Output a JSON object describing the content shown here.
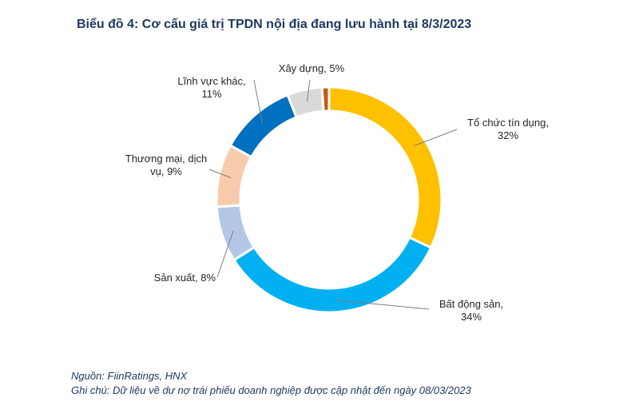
{
  "chart_data": {
    "type": "pie",
    "donut": true,
    "title": "Biểu đồ 4: Cơ cấu giá trị TPDN nội địa đang lưu hành tại 8/3/2023",
    "categories": [
      "Tổ chức tín dụng",
      "Bất động sản",
      "Sản xuất",
      "Thương mại, dịch vụ",
      "Lĩnh vực khác",
      "Xây dựng"
    ],
    "values": [
      32,
      34,
      8,
      9,
      11,
      5
    ],
    "extra_slice_value": 1,
    "colors": [
      "#ffc000",
      "#00b0f0",
      "#b4c7e7",
      "#f8cbad",
      "#0070c0",
      "#d9d9d9",
      "#c55a11"
    ],
    "labels": [
      {
        "lines": [
          "Tổ chức tín dụng,",
          "32%"
        ]
      },
      {
        "lines": [
          "Bất động sản,",
          "34%"
        ]
      },
      {
        "lines": [
          "Sản xuất, 8%"
        ]
      },
      {
        "lines": [
          "Thương mại, dịch",
          "vụ, 9%"
        ]
      },
      {
        "lines": [
          "Lĩnh vực khác,",
          "11%"
        ]
      },
      {
        "lines": [
          "Xây dựng, 5%"
        ]
      }
    ]
  },
  "notes": {
    "source": "Nguồn: FiinRatings, HNX",
    "comment": "Ghi chú: Dữ liệu về dư nợ trái phiếu doanh nghiệp được cập nhật đến ngày 08/03/2023"
  }
}
